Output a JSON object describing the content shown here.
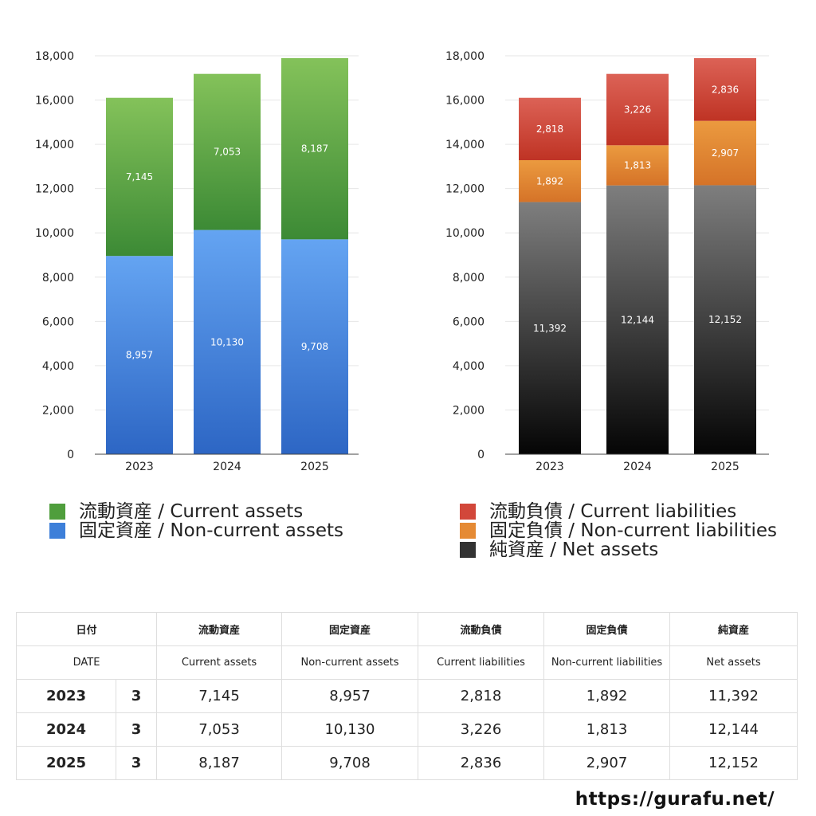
{
  "chart_data": [
    {
      "type": "bar",
      "stacked": true,
      "categories": [
        "2023",
        "2024",
        "2025"
      ],
      "ylim": [
        0,
        18000
      ],
      "yticks": [
        0,
        2000,
        4000,
        6000,
        8000,
        10000,
        12000,
        14000,
        16000,
        18000
      ],
      "ytick_labels": [
        "0",
        "2,000",
        "4,000",
        "6,000",
        "8,000",
        "10,000",
        "12,000",
        "14,000",
        "16,000",
        "18,000"
      ],
      "grid": true,
      "legend_position": "bottom",
      "series": [
        {
          "name": "固定資産 / Non-current assets",
          "values": [
            8957,
            10130,
            9708
          ],
          "labels": [
            "8,957",
            "10,130",
            "9,708"
          ],
          "color_top": "#64a4f2",
          "color_bottom": "#2d66c4"
        },
        {
          "name": "流動資産 / Current assets",
          "values": [
            7145,
            7053,
            8187
          ],
          "labels": [
            "7,145",
            "7,053",
            "8,187"
          ],
          "color_top": "#84c25a",
          "color_bottom": "#3c8a35"
        }
      ],
      "legend": [
        {
          "label": "流動資産 / Current assets",
          "color": "#4f9e3c"
        },
        {
          "label": "固定資産 / Non-current assets",
          "color": "#3d7fd9"
        }
      ]
    },
    {
      "type": "bar",
      "stacked": true,
      "categories": [
        "2023",
        "2024",
        "2025"
      ],
      "ylim": [
        0,
        18000
      ],
      "yticks": [
        0,
        2000,
        4000,
        6000,
        8000,
        10000,
        12000,
        14000,
        16000,
        18000
      ],
      "ytick_labels": [
        "0",
        "2,000",
        "4,000",
        "6,000",
        "8,000",
        "10,000",
        "12,000",
        "14,000",
        "16,000",
        "18,000"
      ],
      "grid": true,
      "legend_position": "bottom",
      "series": [
        {
          "name": "純資産 / Net assets",
          "values": [
            11392,
            12144,
            12152
          ],
          "labels": [
            "11,392",
            "12,144",
            "12,152"
          ],
          "color_top": "#7e7e7e",
          "color_bottom": "#050505"
        },
        {
          "name": "固定負債 / Non-current liabilities",
          "values": [
            1892,
            1813,
            2907
          ],
          "labels": [
            "1,892",
            "1,813",
            "2,907"
          ],
          "color_top": "#eb9a3f",
          "color_bottom": "#d57328"
        },
        {
          "name": "流動負債 / Current liabilities",
          "values": [
            2818,
            3226,
            2836
          ],
          "labels": [
            "2,818",
            "3,226",
            "2,836"
          ],
          "color_top": "#dc6256",
          "color_bottom": "#bf3324"
        }
      ],
      "legend": [
        {
          "label": "流動負債 / Current liabilities",
          "color": "#d2473a"
        },
        {
          "label": "固定負債 / Non-current liabilities",
          "color": "#e58a34"
        },
        {
          "label": "純資産 / Net assets",
          "color": "#333333"
        }
      ]
    }
  ],
  "table": {
    "header_jp": [
      "日付",
      "流動資産",
      "固定資産",
      "流動負債",
      "固定負債",
      "純資産"
    ],
    "header_en": [
      "DATE",
      "Current assets",
      "Non-current assets",
      "Current liabilities",
      "Non-current liabilities",
      "Net assets"
    ],
    "rows": [
      {
        "year": "2023",
        "month": "3",
        "values": [
          "7,145",
          "8,957",
          "2,818",
          "1,892",
          "11,392"
        ]
      },
      {
        "year": "2024",
        "month": "3",
        "values": [
          "7,053",
          "10,130",
          "3,226",
          "1,813",
          "12,144"
        ]
      },
      {
        "year": "2025",
        "month": "3",
        "values": [
          "8,187",
          "9,708",
          "2,836",
          "2,907",
          "12,152"
        ]
      }
    ]
  },
  "footer": {
    "url": "https://gurafu.net/"
  }
}
